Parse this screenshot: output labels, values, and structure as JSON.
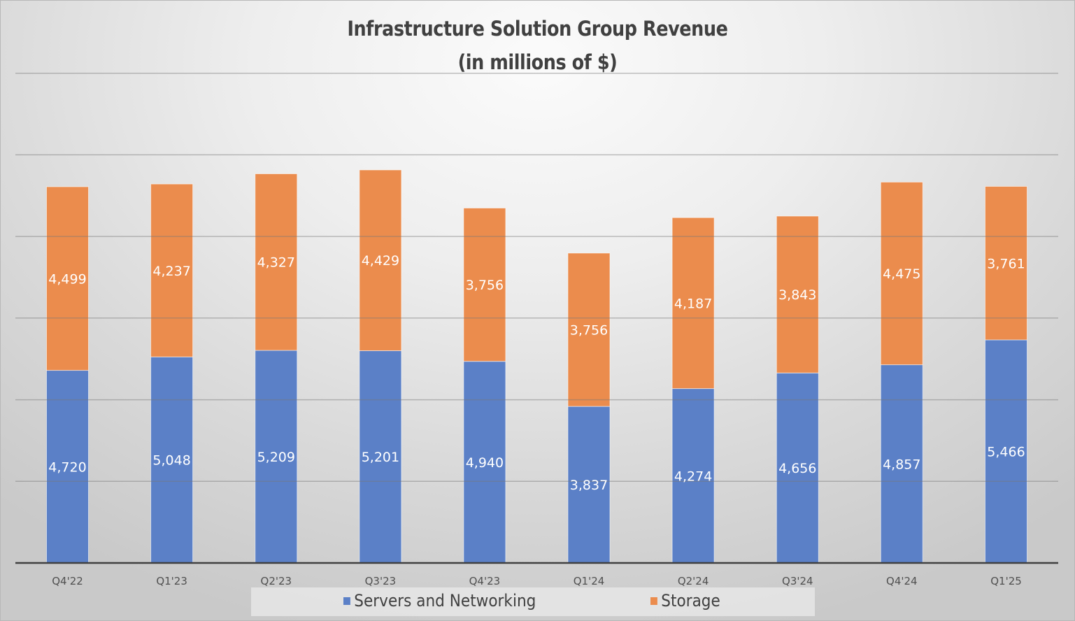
{
  "chart_data": {
    "type": "bar",
    "stacked": true,
    "title": "Infrastructure Solution Group Revenue",
    "subtitle": "(in millions of $)",
    "xlabel": "",
    "ylabel": "",
    "ylim": [
      0,
      12000
    ],
    "ytick_step": 2000,
    "y_tick_labels_shown": false,
    "grid": true,
    "legend_position": "bottom",
    "categories": [
      "Q4'22",
      "Q1'23",
      "Q2'23",
      "Q3'23",
      "Q4'23",
      "Q1'24",
      "Q2'24",
      "Q3'24",
      "Q4'24",
      "Q1'25"
    ],
    "series": [
      {
        "name": "Servers and Networking",
        "color": "#5b80c7",
        "values": [
          4720,
          5048,
          5209,
          5201,
          4940,
          3837,
          4274,
          4656,
          4857,
          5466
        ],
        "labels": [
          "4,720",
          "5,048",
          "5,209",
          "5,201",
          "4,940",
          "3,837",
          "4,274",
          "4,656",
          "4,857",
          "5,466"
        ]
      },
      {
        "name": "Storage",
        "color": "#eb8c4d",
        "values": [
          4499,
          4237,
          4327,
          4429,
          3756,
          3756,
          4187,
          3843,
          4475,
          3761
        ],
        "labels": [
          "4,499",
          "4,237",
          "4,327",
          "4,429",
          "3,756",
          "3,756",
          "4,187",
          "3,843",
          "4,475",
          "3,761"
        ]
      }
    ]
  }
}
